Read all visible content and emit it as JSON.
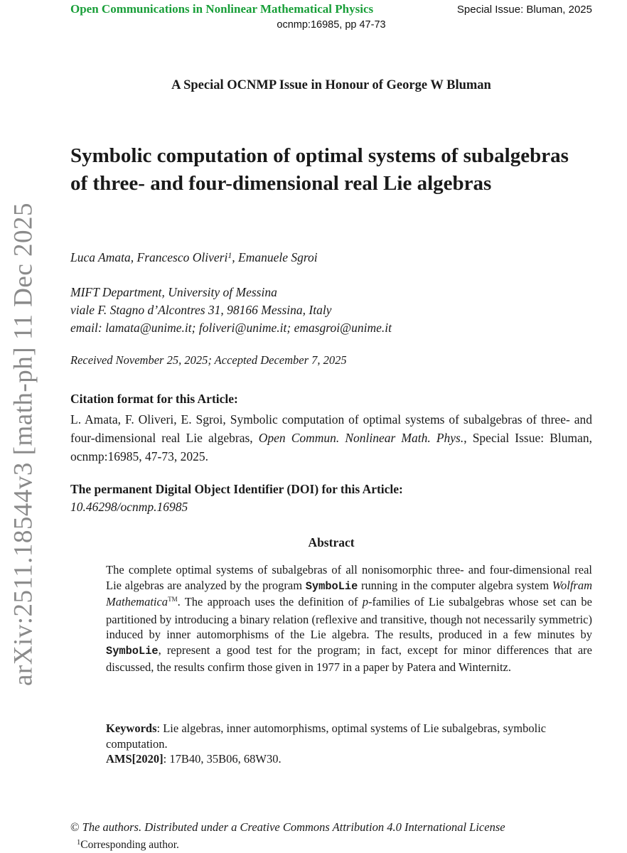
{
  "watermark": {
    "text": "arXiv:2511.18544v3 [math-ph] 11 Dec 2025",
    "color": "#8a8a8a"
  },
  "header": {
    "journal": "Open Communications in Nonlinear Mathematical Physics",
    "journal_color": "#189e38",
    "issue": "Special Issue: Bluman, 2025",
    "id_line": "ocnmp:16985, pp 47-73"
  },
  "honour_line": "A Special OCNMP Issue in Honour of George W Bluman",
  "title": "Symbolic computation of optimal systems of subalgebras of three- and four-dimensional real Lie algebras",
  "authors": {
    "segments": [
      {
        "t": "Luca Amata, Francesco Oliveri",
        "s": ""
      },
      {
        "t": "1",
        "s": "sup"
      },
      {
        "t": ", Emanuele Sgroi",
        "s": ""
      }
    ]
  },
  "affiliation": {
    "lines": [
      "MIFT Department, University of Messina",
      "viale F. Stagno d’Alcontres 31, 98166 Messina, Italy",
      "email: lamata@unime.it; foliveri@unime.it; emasgroi@unime.it"
    ]
  },
  "received": "Received November 25, 2025; Accepted December 7, 2025",
  "citation": {
    "heading": "Citation format for this Article:",
    "segments": [
      {
        "t": "L. Amata, F. Oliveri, E. Sgroi, Symbolic computation of optimal systems of subalgebras of three- and four-dimensional real Lie algebras, ",
        "s": ""
      },
      {
        "t": "Open Commun. Nonlinear Math. Phys.",
        "s": "italic"
      },
      {
        "t": ", Special Issue: Bluman, ocnmp:16985, 47-73, 2025.",
        "s": ""
      }
    ]
  },
  "doi": {
    "heading": "The permanent Digital Object Identifier (DOI) for this Article:",
    "value": "10.46298/ocnmp.16985"
  },
  "abstract": {
    "heading": "Abstract",
    "segments": [
      {
        "t": "The complete optimal systems of subalgebras of all nonisomorphic three- and four-dimensional real Lie algebras are analyzed by the program ",
        "s": ""
      },
      {
        "t": "SymboLie",
        "s": "mono"
      },
      {
        "t": " running in the computer algebra system ",
        "s": ""
      },
      {
        "t": "Wolfram Mathematica",
        "s": "italic"
      },
      {
        "t": "TM",
        "s": "tm"
      },
      {
        "t": ". The approach uses the definition of ",
        "s": ""
      },
      {
        "t": "p",
        "s": "italic"
      },
      {
        "t": "-families of Lie subalgebras whose set can be partitioned by introducing a binary relation (reflexive and transitive, though not necessarily symmetric) induced by inner automorphisms of the Lie algebra.  The results, produced in a few minutes by ",
        "s": ""
      },
      {
        "t": "SymboLie",
        "s": "mono"
      },
      {
        "t": ", represent a good test for the program; in fact, except for minor differences that are discussed, the results confirm those given in 1977 in a paper by Patera and Winternitz.",
        "s": ""
      }
    ]
  },
  "keywords": {
    "segments": [
      {
        "t": "Keywords",
        "s": "bold"
      },
      {
        "t": ": Lie algebras, inner automorphisms, optimal systems of Lie subalgebras, symbolic computation.",
        "s": ""
      }
    ]
  },
  "ams": {
    "segments": [
      {
        "t": "AMS[2020]",
        "s": "bold"
      },
      {
        "t": ": 17B40, 35B06, 68W30.",
        "s": ""
      }
    ]
  },
  "footer": {
    "copyright_segments": [
      {
        "t": "© ",
        "s": "copy"
      },
      {
        "t": "The authors. Distributed under a Creative Commons Attribution 4.0 International License",
        "s": ""
      }
    ],
    "corresponding_segments": [
      {
        "t": "1",
        "s": "sup"
      },
      {
        "t": "Corresponding author.",
        "s": ""
      }
    ]
  }
}
